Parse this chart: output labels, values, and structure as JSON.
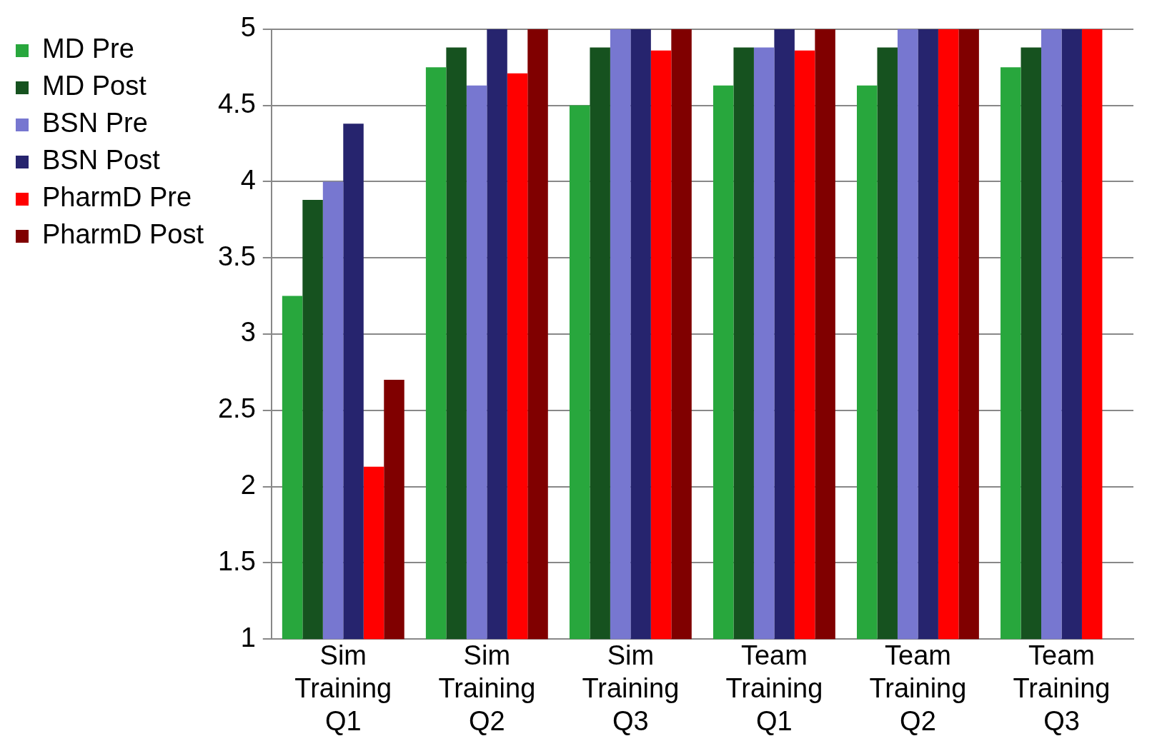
{
  "chart_data": {
    "type": "bar",
    "categories": [
      "Sim Training Q1",
      "Sim Training Q2",
      "Sim Training Q3",
      "Team Training Q1",
      "Team Training Q2",
      "Team Training Q3"
    ],
    "series": [
      {
        "name": "MD Pre",
        "color": "#28a73d",
        "values": [
          3.25,
          4.75,
          4.5,
          4.63,
          4.63,
          4.75
        ]
      },
      {
        "name": "MD Post",
        "color": "#16521f",
        "values": [
          3.88,
          4.88,
          4.88,
          4.88,
          4.88,
          4.88
        ]
      },
      {
        "name": "BSN Pre",
        "color": "#7777d0",
        "values": [
          4.0,
          4.63,
          5,
          4.88,
          5,
          5
        ]
      },
      {
        "name": "BSN Post",
        "color": "#26246e",
        "values": [
          4.38,
          5,
          5,
          5,
          5,
          5
        ]
      },
      {
        "name": "PharmD Pre",
        "color": "#ff0000",
        "values": [
          2.13,
          4.71,
          4.86,
          4.86,
          5,
          5
        ]
      },
      {
        "name": "PharmD Post",
        "color": "#800000",
        "values": [
          2.7,
          5,
          5,
          5,
          5,
          null
        ]
      }
    ],
    "ylim": [
      1,
      5
    ],
    "yticks": [
      1,
      1.5,
      2,
      2.5,
      3,
      3.5,
      4,
      4.5,
      5
    ],
    "grid": "y",
    "legend": "left"
  }
}
